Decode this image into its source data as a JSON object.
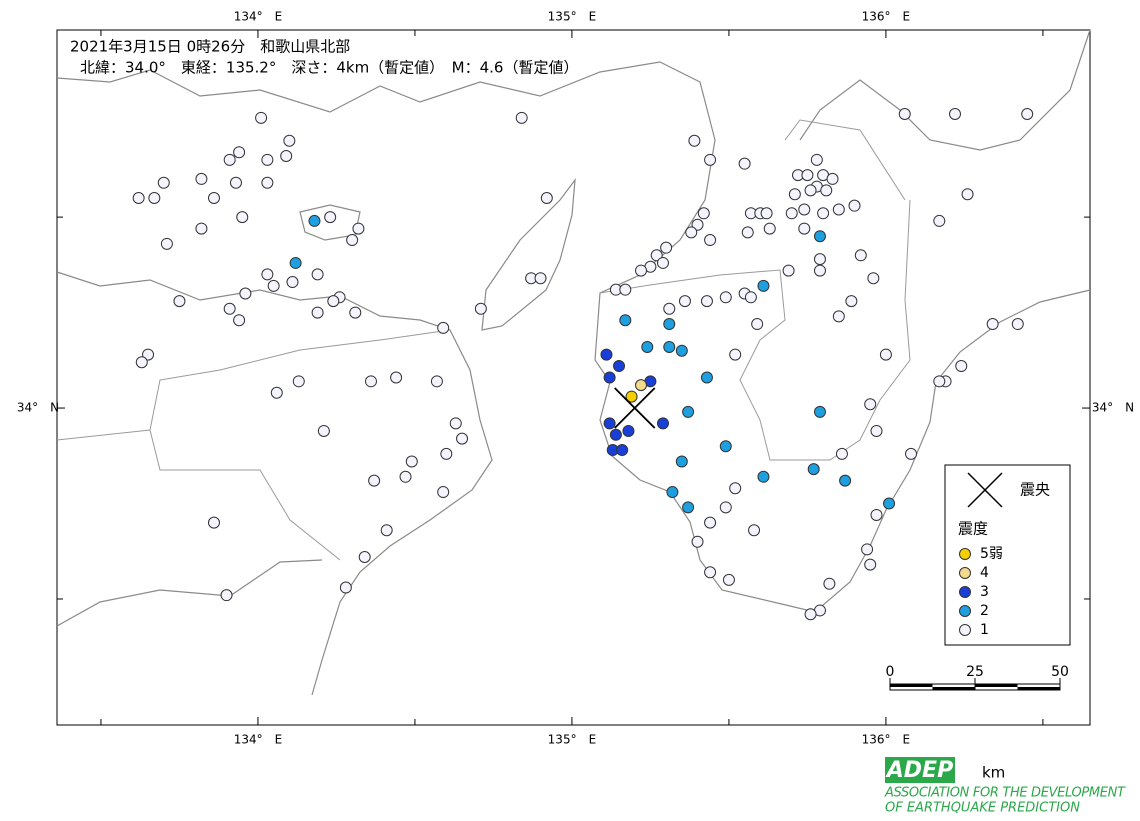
{
  "header": {
    "line1": "2021年3月15日 0時26分　和歌山県北部",
    "line2": "北緯：34.0°　東経：135.2°　深さ：4km（暫定値）　M：4.6（暫定値）"
  },
  "map": {
    "lon_range": [
      133.36,
      136.65
    ],
    "lat_range": [
      33.17,
      34.99
    ],
    "lon_ticks": [
      {
        "value": 134,
        "label": "134°　E"
      },
      {
        "value": 135,
        "label": "135°　E"
      },
      {
        "value": 136,
        "label": "136°　E"
      }
    ],
    "lat_ticks": [
      {
        "value": 34,
        "label": "34°　N"
      }
    ],
    "minor_lon_ticks": [
      133.5,
      134.5,
      135.5,
      136.5
    ],
    "minor_lat_ticks": [
      33.5,
      34.5
    ]
  },
  "epicenter": {
    "lon": 135.2,
    "lat": 34.0
  },
  "legend": {
    "epicenter_label": "震央",
    "intensity_title": "震度",
    "items": [
      {
        "label": "5弱",
        "color": "#f5cf00"
      },
      {
        "label": "4",
        "color": "#f2d98c"
      },
      {
        "label": "3",
        "color": "#1a3fd8"
      },
      {
        "label": "2",
        "color": "#1e9fe0"
      },
      {
        "label": "1",
        "color": "#f4f4ff"
      }
    ]
  },
  "scale": {
    "ticks": [
      0,
      25,
      50
    ],
    "unit": "km"
  },
  "logo": {
    "acronym": "ADEP",
    "line1": "ASSOCIATION FOR THE DEVELOPMENT",
    "line2": "OF EARTHQUAKE PREDICTION"
  },
  "stations": [
    [
      134.18,
      34.49,
      "2"
    ],
    [
      134.12,
      34.38,
      "2"
    ],
    [
      135.17,
      34.23,
      "2"
    ],
    [
      135.31,
      34.22,
      "2"
    ],
    [
      135.24,
      34.16,
      "2"
    ],
    [
      135.31,
      34.16,
      "2"
    ],
    [
      135.35,
      34.15,
      "2"
    ],
    [
      135.61,
      34.32,
      "2"
    ],
    [
      135.43,
      34.08,
      "2"
    ],
    [
      135.79,
      34.45,
      "2"
    ],
    [
      135.37,
      33.99,
      "2"
    ],
    [
      135.49,
      33.9,
      "2"
    ],
    [
      135.35,
      33.86,
      "2"
    ],
    [
      135.61,
      33.82,
      "2"
    ],
    [
      135.77,
      33.84,
      "2"
    ],
    [
      135.87,
      33.81,
      "2"
    ],
    [
      135.32,
      33.78,
      "2"
    ],
    [
      135.37,
      33.74,
      "2"
    ],
    [
      136.01,
      33.75,
      "2"
    ],
    [
      135.79,
      33.99,
      "2"
    ],
    [
      135.11,
      34.14,
      "3"
    ],
    [
      135.15,
      34.11,
      "3"
    ],
    [
      135.12,
      34.08,
      "3"
    ],
    [
      135.25,
      34.07,
      "3"
    ],
    [
      135.12,
      33.96,
      "3"
    ],
    [
      135.14,
      33.93,
      "3"
    ],
    [
      135.18,
      33.94,
      "3"
    ],
    [
      135.29,
      33.96,
      "3"
    ],
    [
      135.13,
      33.89,
      "3"
    ],
    [
      135.16,
      33.89,
      "3"
    ],
    [
      135.22,
      34.06,
      "4"
    ],
    [
      135.19,
      34.03,
      "5弱"
    ],
    [
      134.01,
      34.76,
      "1"
    ],
    [
      134.1,
      34.7,
      "1"
    ],
    [
      133.94,
      34.67,
      "1"
    ],
    [
      133.91,
      34.65,
      "1"
    ],
    [
      134.03,
      34.65,
      "1"
    ],
    [
      134.09,
      34.66,
      "1"
    ],
    [
      133.7,
      34.59,
      "1"
    ],
    [
      133.82,
      34.6,
      "1"
    ],
    [
      133.93,
      34.59,
      "1"
    ],
    [
      133.62,
      34.55,
      "1"
    ],
    [
      133.67,
      34.55,
      "1"
    ],
    [
      133.86,
      34.55,
      "1"
    ],
    [
      134.03,
      34.59,
      "1"
    ],
    [
      133.95,
      34.5,
      "1"
    ],
    [
      133.82,
      34.47,
      "1"
    ],
    [
      134.23,
      34.5,
      "1"
    ],
    [
      134.32,
      34.47,
      "1"
    ],
    [
      134.3,
      34.44,
      "1"
    ],
    [
      133.71,
      34.43,
      "1"
    ],
    [
      134.03,
      34.35,
      "1"
    ],
    [
      134.11,
      34.33,
      "1"
    ],
    [
      134.19,
      34.35,
      "1"
    ],
    [
      133.75,
      34.28,
      "1"
    ],
    [
      133.96,
      34.3,
      "1"
    ],
    [
      134.05,
      34.32,
      "1"
    ],
    [
      134.26,
      34.29,
      "1"
    ],
    [
      134.24,
      34.28,
      "1"
    ],
    [
      134.19,
      34.25,
      "1"
    ],
    [
      133.91,
      34.26,
      "1"
    ],
    [
      133.94,
      34.23,
      "1"
    ],
    [
      134.31,
      34.25,
      "1"
    ],
    [
      133.65,
      34.14,
      "1"
    ],
    [
      133.63,
      34.12,
      "1"
    ],
    [
      134.13,
      34.07,
      "1"
    ],
    [
      134.06,
      34.04,
      "1"
    ],
    [
      134.36,
      34.07,
      "1"
    ],
    [
      134.44,
      34.08,
      "1"
    ],
    [
      134.57,
      34.07,
      "1"
    ],
    [
      134.21,
      33.94,
      "1"
    ],
    [
      134.63,
      33.96,
      "1"
    ],
    [
      134.65,
      33.92,
      "1"
    ],
    [
      134.6,
      33.88,
      "1"
    ],
    [
      134.49,
      33.86,
      "1"
    ],
    [
      134.47,
      33.82,
      "1"
    ],
    [
      134.37,
      33.81,
      "1"
    ],
    [
      134.59,
      33.78,
      "1"
    ],
    [
      133.86,
      33.7,
      "1"
    ],
    [
      134.41,
      33.68,
      "1"
    ],
    [
      134.34,
      33.61,
      "1"
    ],
    [
      134.28,
      33.53,
      "1"
    ],
    [
      133.9,
      33.51,
      "1"
    ],
    [
      134.84,
      34.76,
      "1"
    ],
    [
      134.92,
      34.55,
      "1"
    ],
    [
      134.87,
      34.34,
      "1"
    ],
    [
      134.9,
      34.34,
      "1"
    ],
    [
      134.71,
      34.26,
      "1"
    ],
    [
      134.59,
      34.21,
      "1"
    ],
    [
      135.39,
      34.7,
      "1"
    ],
    [
      135.44,
      34.65,
      "1"
    ],
    [
      135.42,
      34.51,
      "1"
    ],
    [
      135.4,
      34.48,
      "1"
    ],
    [
      135.38,
      34.46,
      "1"
    ],
    [
      135.44,
      34.44,
      "1"
    ],
    [
      135.3,
      34.42,
      "1"
    ],
    [
      135.27,
      34.4,
      "1"
    ],
    [
      135.29,
      34.38,
      "1"
    ],
    [
      135.25,
      34.37,
      "1"
    ],
    [
      135.22,
      34.36,
      "1"
    ],
    [
      135.14,
      34.31,
      "1"
    ],
    [
      135.17,
      34.31,
      "1"
    ],
    [
      135.31,
      34.26,
      "1"
    ],
    [
      135.36,
      34.28,
      "1"
    ],
    [
      135.43,
      34.28,
      "1"
    ],
    [
      135.49,
      34.29,
      "1"
    ],
    [
      135.55,
      34.3,
      "1"
    ],
    [
      135.57,
      34.29,
      "1"
    ],
    [
      135.59,
      34.22,
      "1"
    ],
    [
      135.52,
      34.14,
      "1"
    ],
    [
      135.55,
      34.64,
      "1"
    ],
    [
      135.57,
      34.51,
      "1"
    ],
    [
      135.6,
      34.51,
      "1"
    ],
    [
      135.62,
      34.51,
      "1"
    ],
    [
      135.56,
      34.46,
      "1"
    ],
    [
      135.63,
      34.47,
      "1"
    ],
    [
      135.69,
      34.36,
      "1"
    ],
    [
      135.78,
      34.65,
      "1"
    ],
    [
      135.72,
      34.61,
      "1"
    ],
    [
      135.75,
      34.61,
      "1"
    ],
    [
      135.78,
      34.58,
      "1"
    ],
    [
      135.8,
      34.61,
      "1"
    ],
    [
      135.83,
      34.6,
      "1"
    ],
    [
      135.71,
      34.56,
      "1"
    ],
    [
      135.76,
      34.57,
      "1"
    ],
    [
      135.81,
      34.57,
      "1"
    ],
    [
      135.74,
      34.52,
      "1"
    ],
    [
      135.7,
      34.51,
      "1"
    ],
    [
      135.8,
      34.51,
      "1"
    ],
    [
      135.85,
      34.52,
      "1"
    ],
    [
      135.9,
      34.53,
      "1"
    ],
    [
      135.74,
      34.47,
      "1"
    ],
    [
      135.92,
      34.4,
      "1"
    ],
    [
      135.79,
      34.39,
      "1"
    ],
    [
      135.79,
      34.36,
      "1"
    ],
    [
      135.96,
      34.34,
      "1"
    ],
    [
      135.89,
      34.28,
      "1"
    ],
    [
      135.85,
      34.24,
      "1"
    ],
    [
      136.0,
      34.14,
      "1"
    ],
    [
      135.95,
      34.01,
      "1"
    ],
    [
      135.97,
      33.94,
      "1"
    ],
    [
      135.86,
      33.88,
      "1"
    ],
    [
      136.06,
      34.77,
      "1"
    ],
    [
      136.22,
      34.77,
      "1"
    ],
    [
      136.45,
      34.77,
      "1"
    ],
    [
      136.26,
      34.56,
      "1"
    ],
    [
      136.17,
      34.49,
      "1"
    ],
    [
      136.34,
      34.22,
      "1"
    ],
    [
      136.42,
      34.22,
      "1"
    ],
    [
      136.24,
      34.11,
      "1"
    ],
    [
      136.19,
      34.07,
      "1"
    ],
    [
      136.17,
      34.07,
      "1"
    ],
    [
      136.08,
      33.88,
      "1"
    ],
    [
      135.97,
      33.72,
      "1"
    ],
    [
      135.94,
      33.63,
      "1"
    ],
    [
      135.95,
      33.59,
      "1"
    ],
    [
      135.52,
      33.79,
      "1"
    ],
    [
      135.58,
      33.68,
      "1"
    ],
    [
      135.44,
      33.7,
      "1"
    ],
    [
      135.49,
      33.74,
      "1"
    ],
    [
      135.4,
      33.65,
      "1"
    ],
    [
      135.44,
      33.57,
      "1"
    ],
    [
      135.5,
      33.55,
      "1"
    ],
    [
      135.82,
      33.54,
      "1"
    ],
    [
      135.79,
      33.47,
      "1"
    ],
    [
      135.76,
      33.46,
      "1"
    ]
  ]
}
